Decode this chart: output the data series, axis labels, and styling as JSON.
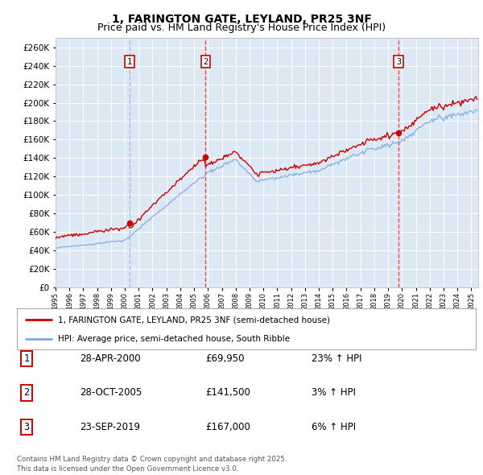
{
  "title": "1, FARINGTON GATE, LEYLAND, PR25 3NF",
  "subtitle": "Price paid vs. HM Land Registry's House Price Index (HPI)",
  "ylim": [
    0,
    270000
  ],
  "yticks": [
    0,
    20000,
    40000,
    60000,
    80000,
    100000,
    120000,
    140000,
    160000,
    180000,
    200000,
    220000,
    240000,
    260000
  ],
  "plot_bg": "#dde8f5",
  "grid_color": "#ffffff",
  "sale_color": "#cc0000",
  "hpi_color": "#7aaadd",
  "vline_sale1_color": "#aabbdd",
  "vline_sale1_style": "--",
  "vline_sale23_color": "#ff4444",
  "vline_sale23_style": "--",
  "sales": [
    {
      "time": 2000.333,
      "price": 69950,
      "label": "1"
    },
    {
      "time": 2005.833,
      "price": 141500,
      "label": "2"
    },
    {
      "time": 2019.75,
      "price": 167000,
      "label": "3"
    }
  ],
  "table_rows": [
    {
      "num": "1",
      "date": "28-APR-2000",
      "price": "£69,950",
      "hpi": "23% ↑ HPI"
    },
    {
      "num": "2",
      "date": "28-OCT-2005",
      "price": "£141,500",
      "hpi": "3% ↑ HPI"
    },
    {
      "num": "3",
      "date": "23-SEP-2019",
      "price": "£167,000",
      "hpi": "6% ↑ HPI"
    }
  ],
  "legend_entries": [
    "1, FARINGTON GATE, LEYLAND, PR25 3NF (semi-detached house)",
    "HPI: Average price, semi-detached house, South Ribble"
  ],
  "footer": "Contains HM Land Registry data © Crown copyright and database right 2025.\nThis data is licensed under the Open Government Licence v3.0.",
  "title_fontsize": 10,
  "subtitle_fontsize": 9
}
